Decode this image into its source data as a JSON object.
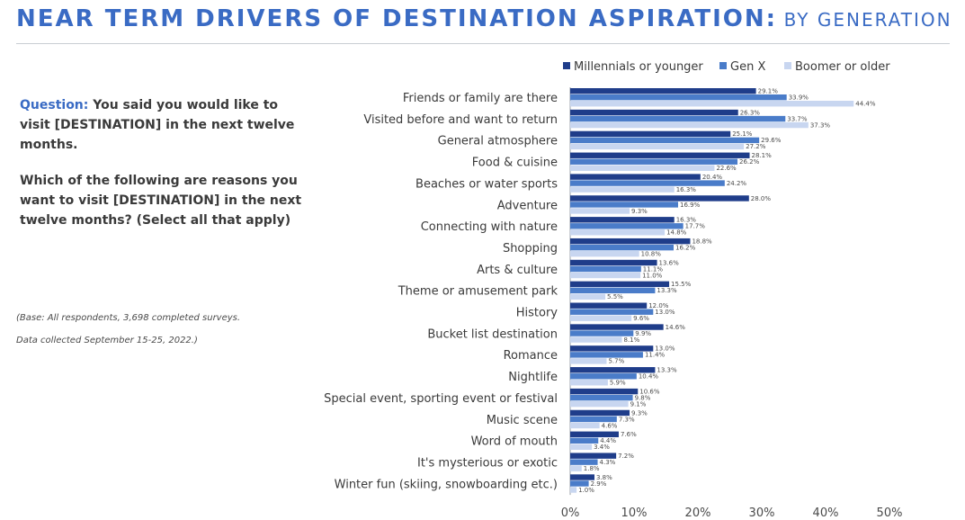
{
  "header": {
    "title_main": "NEAR TERM DRIVERS OF DESTINATION ASPIRATION:",
    "title_sub": "BY GENERATION"
  },
  "question": {
    "label": "Question:",
    "line1": "You said you would like to visit [DESTINATION] in the next twelve months.",
    "line2": "Which of the following are reasons you want to visit [DESTINATION] in the next twelve months? (Select all that apply)"
  },
  "notes": {
    "base": "(Base: All respondents, 3,698 completed surveys.",
    "collected": "Data collected September 15-25, 2022.)"
  },
  "colors": {
    "millennials": "#1f3d8a",
    "genx": "#4a7cc9",
    "boomer": "#c8d6f0",
    "title": "#3a6bc4"
  },
  "chart_data": {
    "type": "bar",
    "orientation": "horizontal",
    "xlim": [
      0,
      50
    ],
    "ticks": [
      0,
      10,
      20,
      30,
      40,
      50
    ],
    "tick_labels": [
      "0%",
      "10%",
      "20%",
      "30%",
      "40%",
      "50%"
    ],
    "legend_position": "top-right",
    "categories": [
      "Friends or family are there",
      "Visited before and want to return",
      "General atmosphere",
      "Food & cuisine",
      "Beaches or water sports",
      "Adventure",
      "Connecting with nature",
      "Shopping",
      "Arts & culture",
      "Theme or amusement park",
      "History",
      "Bucket list destination",
      "Romance",
      "Nightlife",
      "Special event, sporting event or festival",
      "Music scene",
      "Word of mouth",
      "It's mysterious or exotic",
      "Winter fun (skiing, snowboarding etc.)"
    ],
    "series": [
      {
        "name": "Millennials or younger",
        "color": "#1f3d8a",
        "values": [
          29.1,
          26.3,
          25.1,
          28.1,
          20.4,
          28.0,
          16.3,
          18.8,
          13.6,
          15.5,
          12.0,
          14.6,
          13.0,
          13.3,
          10.6,
          9.3,
          7.6,
          7.2,
          3.8
        ]
      },
      {
        "name": "Gen X",
        "color": "#4a7cc9",
        "values": [
          33.9,
          33.7,
          29.6,
          26.2,
          24.2,
          16.9,
          17.7,
          16.2,
          11.1,
          13.3,
          13.0,
          9.9,
          11.4,
          10.4,
          9.8,
          7.3,
          4.4,
          4.3,
          2.9
        ]
      },
      {
        "name": "Boomer or older",
        "color": "#c8d6f0",
        "values": [
          44.4,
          37.3,
          27.2,
          22.6,
          16.3,
          9.3,
          14.8,
          10.8,
          11.0,
          5.5,
          9.6,
          8.1,
          5.7,
          5.9,
          9.1,
          4.6,
          3.4,
          1.8,
          1.0
        ]
      }
    ]
  }
}
